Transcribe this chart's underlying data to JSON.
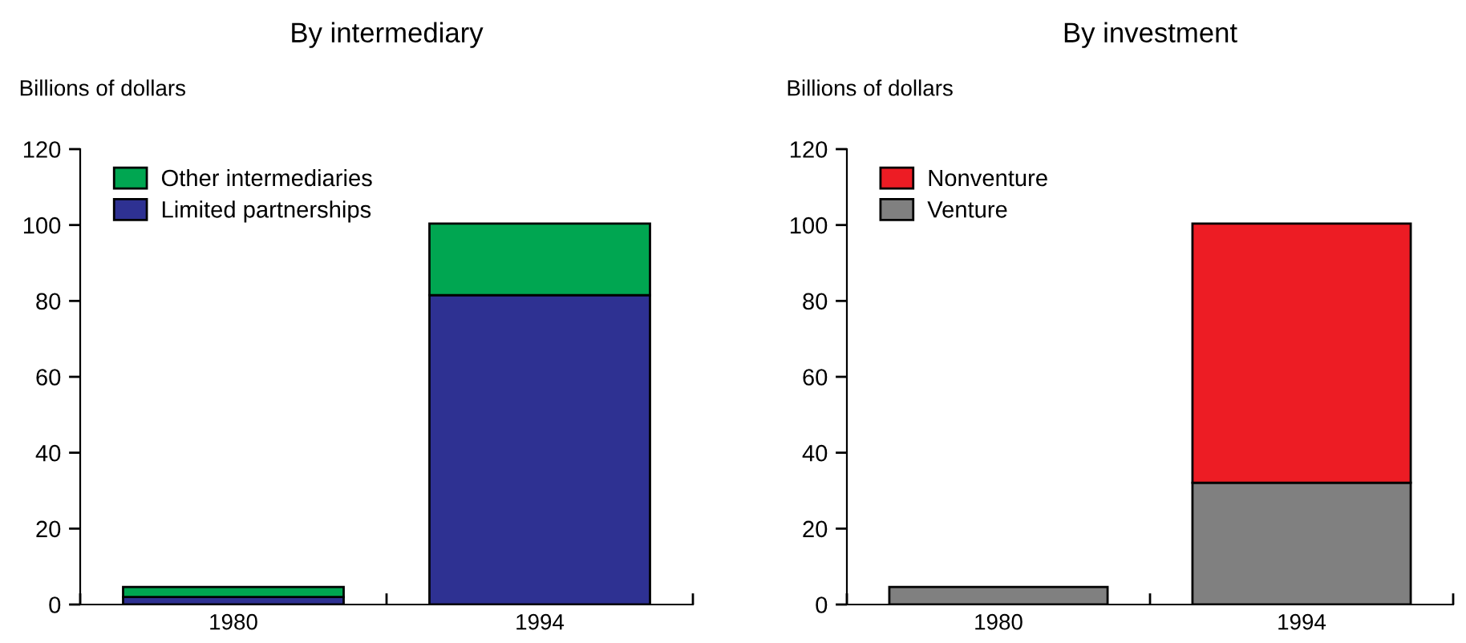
{
  "chart_data": [
    {
      "type": "bar",
      "title": "By intermediary",
      "ylabel": "Billions of dollars",
      "categories": [
        "1980",
        "1994"
      ],
      "stacked": true,
      "series": [
        {
          "name": "Limited partnerships",
          "color": "#2e3192",
          "values": [
            2,
            81.5
          ]
        },
        {
          "name": "Other intermediaries",
          "color": "#00a651",
          "values": [
            2.6,
            18.9
          ]
        }
      ],
      "ylim": [
        0,
        120
      ],
      "yticks": [
        0,
        20,
        40,
        60,
        80,
        100,
        120
      ],
      "legend": "top left"
    },
    {
      "type": "bar",
      "title": "By investment",
      "ylabel": "Billions of dollars",
      "categories": [
        "1980",
        "1994"
      ],
      "stacked": true,
      "series": [
        {
          "name": "Venture",
          "color": "#808080",
          "values": [
            4.6,
            32.1
          ]
        },
        {
          "name": "Nonventure",
          "color": "#ed1c24",
          "values": [
            0,
            68.3
          ]
        }
      ],
      "ylim": [
        0,
        120
      ],
      "yticks": [
        0,
        20,
        40,
        60,
        80,
        100,
        120
      ],
      "legend": "top left"
    }
  ]
}
